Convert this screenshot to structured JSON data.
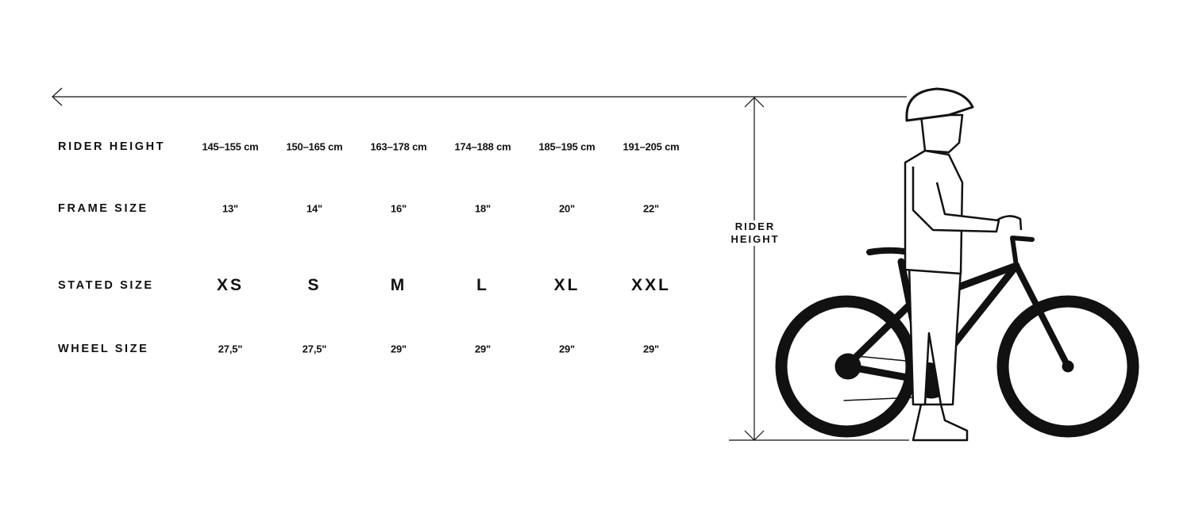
{
  "rows": [
    {
      "label": "RIDER HEIGHT",
      "values": [
        "145–155 cm",
        "150–165 cm",
        "163–178 cm",
        "174–188 cm",
        "185–195 cm",
        "191–205 cm"
      ]
    },
    {
      "label": "FRAME SIZE",
      "values": [
        "13\"",
        "14\"",
        "16\"",
        "18\"",
        "20\"",
        "22\""
      ]
    },
    {
      "label": "STATED SIZE",
      "values": [
        "XS",
        "S",
        "M",
        "L",
        "XL",
        "XXL"
      ]
    },
    {
      "label": "WHEEL SIZE",
      "values": [
        "27,5\"",
        "27,5\"",
        "29\"",
        "29\"",
        "29\"",
        "29\""
      ]
    }
  ],
  "illustration": {
    "label_line1": "RIDER",
    "label_line2": "HEIGHT"
  },
  "colors": {
    "ink": "#111111",
    "background": "#ffffff"
  }
}
